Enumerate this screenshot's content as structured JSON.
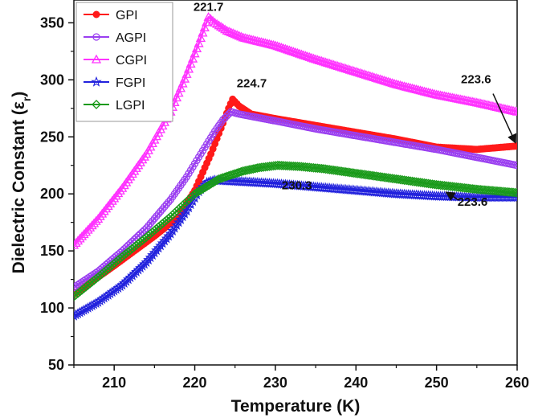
{
  "chart_data": {
    "type": "line",
    "xlabel": "Temperature (K)",
    "ylabel": "Dielectric Constant (ε",
    "ylabel_sub": "r",
    "ylabel_close": ")",
    "xlim": [
      205,
      260
    ],
    "ylim": [
      50,
      370
    ],
    "xticks": [
      210,
      220,
      230,
      240,
      250,
      260
    ],
    "yticks": [
      50,
      100,
      150,
      200,
      250,
      300,
      350
    ],
    "legend_position": "top-left",
    "series": [
      {
        "name": "GPI",
        "marker": "filled-circle",
        "color": "#ff1a1a",
        "x": [
          205,
          210,
          215,
          218,
          220,
          222,
          223.5,
          224.2,
          224.7,
          225.5,
          227,
          230,
          235,
          240,
          245,
          250,
          255,
          260
        ],
        "y": [
          112,
          137,
          163,
          180,
          203,
          235,
          262,
          275,
          283,
          277,
          270,
          266,
          260,
          254,
          248,
          241,
          239,
          242
        ]
      },
      {
        "name": "AGPI",
        "marker": "open-circle",
        "color": "#9a3ff0",
        "x": [
          205,
          208,
          211,
          214,
          217,
          219,
          221,
          222.5,
          223.5,
          224.5,
          225.5,
          227,
          230,
          235,
          240,
          245,
          250,
          255,
          260
        ],
        "y": [
          118,
          132,
          150,
          170,
          195,
          215,
          238,
          255,
          265,
          272,
          270,
          268,
          264,
          257,
          251,
          245,
          239,
          232,
          225
        ]
      },
      {
        "name": "CGPI",
        "marker": "open-triangle",
        "color": "#ff33ff",
        "x": [
          205,
          208,
          211,
          214,
          217,
          219,
          220.5,
          221.7,
          222.5,
          224,
          226,
          230,
          235,
          240,
          245,
          250,
          255,
          260
        ],
        "y": [
          155,
          178,
          205,
          235,
          272,
          305,
          332,
          355,
          350,
          343,
          337,
          330,
          318,
          307,
          296,
          287,
          280,
          272
        ]
      },
      {
        "name": "FGPI",
        "marker": "open-star",
        "color": "#2222dd",
        "x": [
          205,
          208,
          211,
          214,
          217,
          219,
          220.5,
          221.5,
          222.5,
          225,
          230,
          235,
          240,
          245,
          250,
          255,
          260
        ],
        "y": [
          93,
          105,
          120,
          140,
          165,
          185,
          202,
          210,
          212,
          211,
          209,
          206,
          203,
          200,
          198,
          197,
          197
        ]
      },
      {
        "name": "LGPI",
        "marker": "open-diamond",
        "color": "#1a9a1a",
        "x": [
          205,
          208,
          211,
          214,
          217,
          220,
          223,
          226,
          228,
          230.3,
          233,
          236,
          240,
          245,
          250,
          255,
          260
        ],
        "y": [
          110,
          127,
          145,
          162,
          180,
          200,
          213,
          220,
          223,
          225,
          224,
          222,
          218,
          213,
          208,
          204,
          201
        ]
      }
    ],
    "annotations": [
      {
        "text": "221.7",
        "x": 221.7,
        "y": 355
      },
      {
        "text": "224.7",
        "x": 224.7,
        "y": 283
      },
      {
        "text": "230.3",
        "x": 230.3,
        "y": 225
      },
      {
        "text": "223.6",
        "x": 260,
        "y": 242
      },
      {
        "text": "223.6",
        "x": 252,
        "y": 200
      }
    ]
  }
}
